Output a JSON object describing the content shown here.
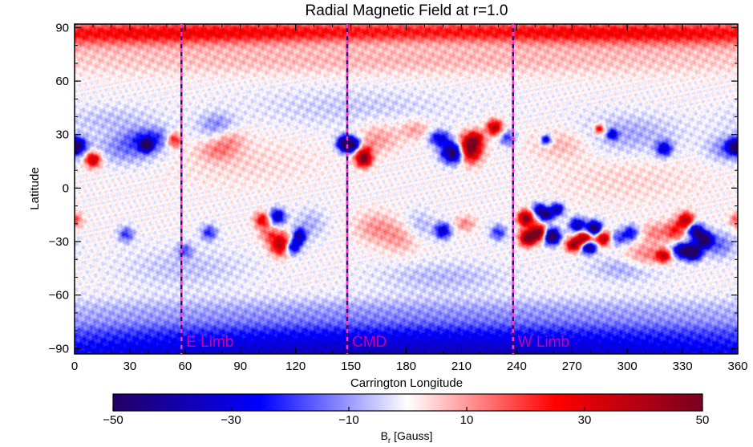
{
  "chart_data": {
    "type": "heatmap",
    "title": "Radial Magnetic Field at r=1.0",
    "xlabel": "Carrington Longitude",
    "ylabel": "Latitude",
    "xlim": [
      0,
      360
    ],
    "ylim": [
      -93,
      92
    ],
    "x_ticks": [
      0,
      30,
      60,
      90,
      120,
      150,
      180,
      210,
      240,
      270,
      300,
      330,
      360
    ],
    "y_ticks": [
      90,
      60,
      30,
      0,
      -30,
      -60,
      -90
    ],
    "y_tick_labels": [
      "90",
      "60",
      "30",
      "0",
      "−30",
      "−60",
      "−90"
    ],
    "colorbar": {
      "label_main": "B",
      "label_sub": "r",
      "label_unit": " [Gauss]",
      "range": [
        -50,
        50
      ],
      "ticks": [
        -50,
        -30,
        -10,
        10,
        30,
        50
      ],
      "tick_labels": [
        "−50",
        "−30",
        "−10",
        "10",
        "30",
        "50"
      ],
      "colors": [
        "#230066",
        "#0000ff",
        "#ffffff",
        "#ff0000",
        "#7a0020"
      ]
    },
    "limb_lines": [
      {
        "label": "E Limb",
        "longitude": 58
      },
      {
        "label": "CMD",
        "longitude": 148
      },
      {
        "label": "W Limb",
        "longitude": 238
      }
    ],
    "limb_line_colors": {
      "dash_a": "#ff33cc",
      "dash_b": "#1a1a6e",
      "label": "#cc0099"
    },
    "features": [
      {
        "lon": 180,
        "lat": 88,
        "sx": 140,
        "sy": 4,
        "b": 18
      },
      {
        "lon": 60,
        "lat": 86,
        "sx": 70,
        "sy": 5,
        "b": 12
      },
      {
        "lon": 300,
        "lat": 86,
        "sx": 70,
        "sy": 5,
        "b": 12
      },
      {
        "lon": 180,
        "lat": 72,
        "sx": 200,
        "sy": 6,
        "b": 7
      },
      {
        "lon": 180,
        "lat": -92,
        "sx": 220,
        "sy": 5,
        "b": -32
      },
      {
        "lon": 180,
        "lat": -82,
        "sx": 220,
        "sy": 5,
        "b": -20
      },
      {
        "lon": 180,
        "lat": -70,
        "sx": 220,
        "sy": 6,
        "b": -10
      },
      {
        "lon": 30,
        "lat": 22,
        "sx": 12,
        "sy": 6,
        "b": -14
      },
      {
        "lon": 42,
        "lat": 28,
        "sx": 9,
        "sy": 4,
        "b": -18
      },
      {
        "lon": 39,
        "lat": 24,
        "sx": 2.5,
        "sy": 2.5,
        "b": -45
      },
      {
        "lon": 54,
        "lat": 27,
        "sx": 3,
        "sy": 3,
        "b": 30
      },
      {
        "lon": 10,
        "lat": 16,
        "sx": 3,
        "sy": 3,
        "b": 40
      },
      {
        "lon": 2,
        "lat": 24,
        "sx": 3,
        "sy": 3,
        "b": -32
      },
      {
        "lon": 358,
        "lat": 23,
        "sx": 3,
        "sy": 3,
        "b": -32
      },
      {
        "lon": 77,
        "lat": 35,
        "sx": 7,
        "sy": 5,
        "b": -12
      },
      {
        "lon": 78,
        "lat": 21,
        "sx": 7,
        "sy": 4,
        "b": 10
      },
      {
        "lon": 84,
        "lat": 28,
        "sx": 6,
        "sy": 4,
        "b": 9
      },
      {
        "lon": 147,
        "lat": 25,
        "sx": 3,
        "sy": 3,
        "b": -50
      },
      {
        "lon": 152,
        "lat": 24,
        "sx": 4,
        "sy": 3,
        "b": -50
      },
      {
        "lon": 156,
        "lat": 22,
        "sx": 3.5,
        "sy": 3.5,
        "b": 32
      },
      {
        "lon": 157,
        "lat": 16,
        "sx": 3,
        "sy": 3,
        "b": 45
      },
      {
        "lon": 165,
        "lat": 28,
        "sx": 8,
        "sy": 6,
        "b": 10
      },
      {
        "lon": 185,
        "lat": 33,
        "sx": 6,
        "sy": 4,
        "b": 10
      },
      {
        "lon": 198,
        "lat": 28,
        "sx": 4,
        "sy": 3,
        "b": -30
      },
      {
        "lon": 206,
        "lat": 20,
        "sx": 4.5,
        "sy": 4,
        "b": -60
      },
      {
        "lon": 214,
        "lat": 22,
        "sx": 4.5,
        "sy": 5,
        "b": 60
      },
      {
        "lon": 218,
        "lat": 28,
        "sx": 3,
        "sy": 3,
        "b": 25
      },
      {
        "lon": 228,
        "lat": 34,
        "sx": 3,
        "sy": 3,
        "b": 40
      },
      {
        "lon": 235,
        "lat": 28,
        "sx": 3,
        "sy": 3,
        "b": -20
      },
      {
        "lon": 265,
        "lat": 25,
        "sx": 12,
        "sy": 6,
        "b": 8
      },
      {
        "lon": 256,
        "lat": 27,
        "sx": 2,
        "sy": 2,
        "b": -35
      },
      {
        "lon": 285,
        "lat": 33,
        "sx": 2,
        "sy": 2,
        "b": 30
      },
      {
        "lon": 292,
        "lat": 30,
        "sx": 2,
        "sy": 2,
        "b": -28
      },
      {
        "lon": 300,
        "lat": 30,
        "sx": 20,
        "sy": 8,
        "b": -9
      },
      {
        "lon": 320,
        "lat": 22,
        "sx": 3,
        "sy": 3,
        "b": -32
      },
      {
        "lon": 355,
        "lat": 22,
        "sx": 8,
        "sy": 5,
        "b": -14
      },
      {
        "lon": 0,
        "lat": -18,
        "sx": 3,
        "sy": 3,
        "b": 18
      },
      {
        "lon": 28,
        "lat": -26,
        "sx": 3,
        "sy": 3,
        "b": -20
      },
      {
        "lon": 60,
        "lat": -35,
        "sx": 3,
        "sy": 3,
        "b": -15
      },
      {
        "lon": 73,
        "lat": -25,
        "sx": 3,
        "sy": 3,
        "b": -22
      },
      {
        "lon": 110,
        "lat": -16,
        "sx": 3,
        "sy": 3,
        "b": -38
      },
      {
        "lon": 102,
        "lat": -18,
        "sx": 3,
        "sy": 3,
        "b": 30
      },
      {
        "lon": 113,
        "lat": -32,
        "sx": 4.5,
        "sy": 4,
        "b": 45
      },
      {
        "lon": 118,
        "lat": -33,
        "sx": 3,
        "sy": 3,
        "b": -50
      },
      {
        "lon": 122,
        "lat": -27,
        "sx": 2.5,
        "sy": 3,
        "b": -40
      },
      {
        "lon": 106,
        "lat": -26,
        "sx": 4,
        "sy": 3,
        "b": 15
      },
      {
        "lon": 128,
        "lat": -20,
        "sx": 6,
        "sy": 6,
        "b": -8
      },
      {
        "lon": 163,
        "lat": -22,
        "sx": 8,
        "sy": 6,
        "b": 10
      },
      {
        "lon": 178,
        "lat": -28,
        "sx": 8,
        "sy": 6,
        "b": 10
      },
      {
        "lon": 187,
        "lat": -22,
        "sx": 6,
        "sy": 6,
        "b": -9
      },
      {
        "lon": 200,
        "lat": -24,
        "sx": 3,
        "sy": 3,
        "b": -35
      },
      {
        "lon": 212,
        "lat": -20,
        "sx": 4,
        "sy": 3,
        "b": 12
      },
      {
        "lon": 230,
        "lat": -25,
        "sx": 3,
        "sy": 3,
        "b": -22
      },
      {
        "lon": 245,
        "lat": -17,
        "sx": 3,
        "sy": 3,
        "b": 50
      },
      {
        "lon": 252,
        "lat": -12,
        "sx": 2.5,
        "sy": 2.5,
        "b": -35
      },
      {
        "lon": 256,
        "lat": -15,
        "sx": 2.5,
        "sy": 2.5,
        "b": -45
      },
      {
        "lon": 262,
        "lat": -12,
        "sx": 2.5,
        "sy": 2.5,
        "b": -40
      },
      {
        "lon": 246,
        "lat": -28,
        "sx": 3,
        "sy": 3,
        "b": 55
      },
      {
        "lon": 252,
        "lat": -25,
        "sx": 3,
        "sy": 3,
        "b": 55
      },
      {
        "lon": 259,
        "lat": -27,
        "sx": 3,
        "sy": 3,
        "b": -65
      },
      {
        "lon": 273,
        "lat": -21,
        "sx": 3,
        "sy": 3,
        "b": -40
      },
      {
        "lon": 277,
        "lat": -28,
        "sx": 3.5,
        "sy": 3,
        "b": 50
      },
      {
        "lon": 271,
        "lat": -32,
        "sx": 3,
        "sy": 2.5,
        "b": 45
      },
      {
        "lon": 282,
        "lat": -23,
        "sx": 3,
        "sy": 3,
        "b": -60
      },
      {
        "lon": 287,
        "lat": -28,
        "sx": 3,
        "sy": 3,
        "b": 45
      },
      {
        "lon": 279,
        "lat": -33,
        "sx": 3,
        "sy": 2.5,
        "b": -55
      },
      {
        "lon": 295,
        "lat": -28,
        "sx": 4,
        "sy": 3,
        "b": -20
      },
      {
        "lon": 302,
        "lat": -25,
        "sx": 3,
        "sy": 3,
        "b": -25
      },
      {
        "lon": 310,
        "lat": -38,
        "sx": 8,
        "sy": 5,
        "b": 14
      },
      {
        "lon": 320,
        "lat": -38,
        "sx": 3,
        "sy": 2.5,
        "b": 35
      },
      {
        "lon": 315,
        "lat": -25,
        "sx": 5,
        "sy": 4,
        "b": 12
      },
      {
        "lon": 326,
        "lat": -24,
        "sx": 4,
        "sy": 4,
        "b": 22
      },
      {
        "lon": 332,
        "lat": -18,
        "sx": 3,
        "sy": 3,
        "b": 40
      },
      {
        "lon": 337,
        "lat": -24,
        "sx": 3,
        "sy": 3,
        "b": -45
      },
      {
        "lon": 342,
        "lat": -29,
        "sx": 3,
        "sy": 3,
        "b": -55
      },
      {
        "lon": 330,
        "lat": -35,
        "sx": 4,
        "sy": 3,
        "b": -45
      },
      {
        "lon": 336,
        "lat": -36,
        "sx": 3,
        "sy": 3,
        "b": -55
      },
      {
        "lon": 350,
        "lat": -32,
        "sx": 6,
        "sy": 5,
        "b": -15
      },
      {
        "lon": 300,
        "lat": -45,
        "sx": 14,
        "sy": 5,
        "b": -9
      },
      {
        "lon": 60,
        "lat": -45,
        "sx": 25,
        "sy": 8,
        "b": -6
      },
      {
        "lon": 200,
        "lat": -50,
        "sx": 25,
        "sy": 6,
        "b": -7
      },
      {
        "lon": 90,
        "lat": 15,
        "sx": 30,
        "sy": 10,
        "b": 4
      },
      {
        "lon": 300,
        "lat": 5,
        "sx": 30,
        "sy": 10,
        "b": 4
      },
      {
        "lon": 150,
        "lat": 45,
        "sx": 40,
        "sy": 8,
        "b": -5
      },
      {
        "lon": 20,
        "lat": 38,
        "sx": 20,
        "sy": 6,
        "b": -6
      }
    ]
  }
}
